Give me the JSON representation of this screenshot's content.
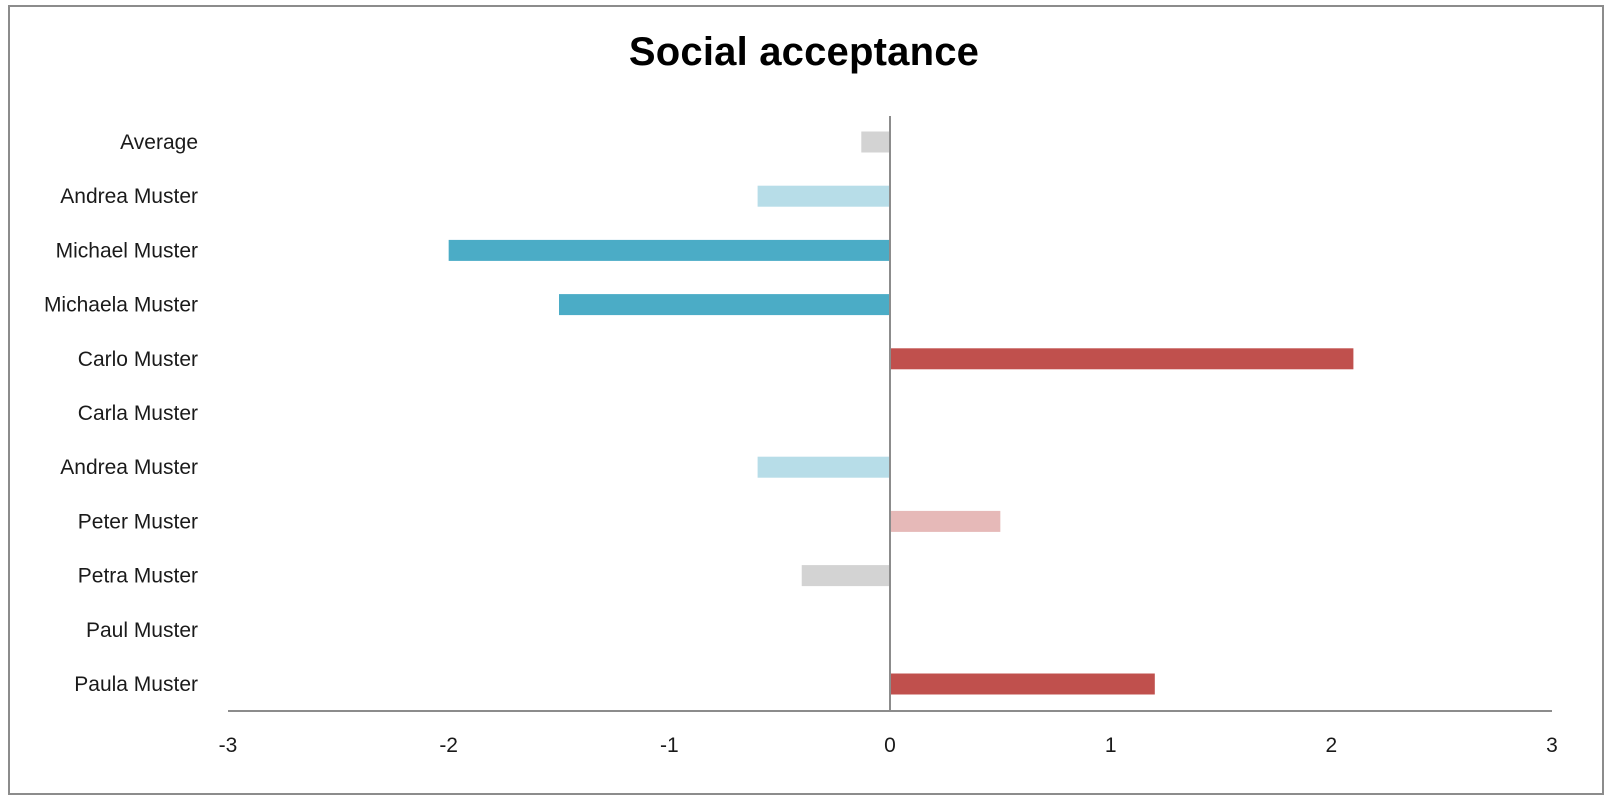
{
  "chart_data": {
    "type": "bar",
    "orientation": "horizontal",
    "title": "Social acceptance",
    "xlabel": "",
    "ylabel": "",
    "xlim": [
      -3,
      3
    ],
    "xticks": [
      "-3",
      "-2",
      "-1",
      "0",
      "1",
      "2",
      "3"
    ],
    "grid": false,
    "legend": "none",
    "categories": [
      "Average",
      "Andrea Muster",
      "Michael Muster",
      "Michaela Muster",
      "Carlo Muster",
      "Carla Muster",
      "Andrea Muster",
      "Peter Muster",
      "Petra Muster",
      "Paul Muster",
      "Paula Muster"
    ],
    "values": [
      -0.13,
      -0.6,
      -2.0,
      -1.5,
      2.1,
      0,
      -0.6,
      0.5,
      -0.4,
      0,
      1.2
    ],
    "colors": [
      "#d3d3d3",
      "#b7dde8",
      "#4bacc6",
      "#4bacc6",
      "#c0504d",
      "#c0504d",
      "#b7dde8",
      "#e6b9b8",
      "#d3d3d3",
      "#d3d3d3",
      "#c0504d"
    ]
  },
  "colors": {
    "axis": "#8c8c8c",
    "frame": "#8c8c8c"
  }
}
